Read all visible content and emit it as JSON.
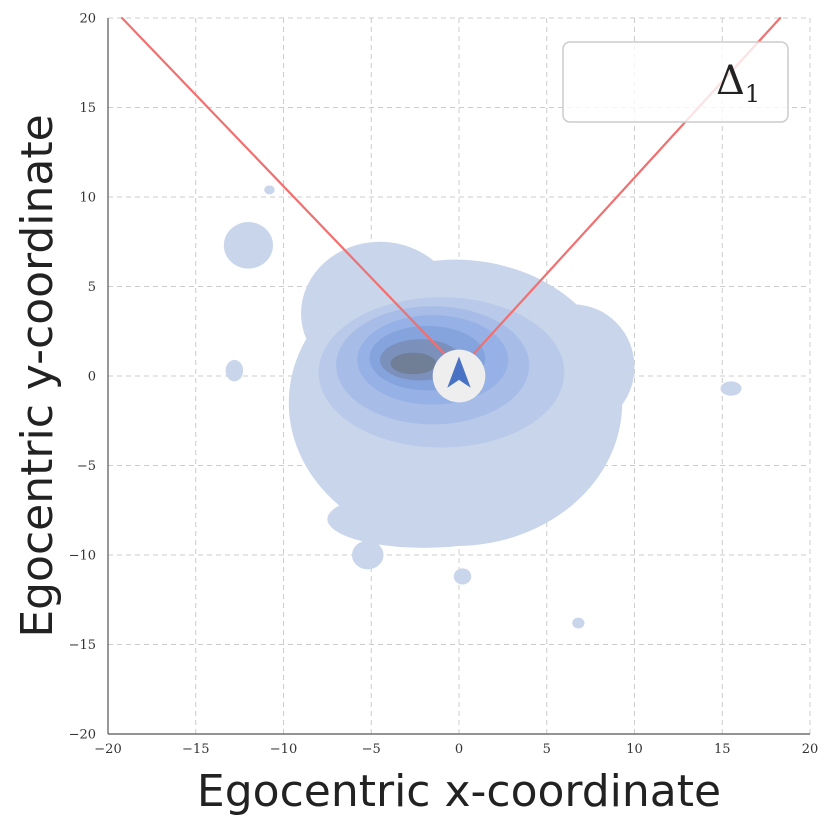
{
  "chart_data": {
    "type": "heatmap",
    "title": "",
    "xlabel": "Egocentric x-coordinate",
    "ylabel": "Egocentric y-coordinate",
    "xlim": [
      -20,
      20
    ],
    "ylim": [
      -20,
      20
    ],
    "xticks": [
      -20,
      -15,
      -10,
      -5,
      0,
      5,
      10,
      15,
      20
    ],
    "yticks": [
      -20,
      -15,
      -10,
      -5,
      0,
      5,
      10,
      15,
      20
    ],
    "xtick_labels": [
      "−20",
      "−15",
      "−10",
      "−5",
      "0",
      "5",
      "10",
      "15",
      "20"
    ],
    "ytick_labels": [
      "−20",
      "−15",
      "−10",
      "−5",
      "0",
      "5",
      "10",
      "15",
      "20"
    ],
    "grid": true,
    "legend": {
      "placement": "top-right",
      "label": "Δ",
      "label_subscript": "1"
    },
    "density_levels": [
      {
        "level": 1,
        "color": "#c9d5ea",
        "blobs": [
          {
            "cx": -0.2,
            "cy": -1.5,
            "rx": 9.5,
            "ry": 8.0
          },
          {
            "cx": -4.5,
            "cy": 3.5,
            "rx": 4.5,
            "ry": 4.0
          },
          {
            "cx": 6.5,
            "cy": 0.5,
            "rx": 3.5,
            "ry": 3.5
          },
          {
            "cx": -2.0,
            "cy": -8.0,
            "rx": 5.5,
            "ry": 1.6
          },
          {
            "cx": -12.0,
            "cy": 7.3,
            "rx": 1.4,
            "ry": 1.3
          },
          {
            "cx": -5.2,
            "cy": -10.0,
            "rx": 0.9,
            "ry": 0.8
          },
          {
            "cx": -12.8,
            "cy": 0.3,
            "rx": 0.5,
            "ry": 0.6
          },
          {
            "cx": 15.5,
            "cy": -0.7,
            "rx": 0.6,
            "ry": 0.4
          },
          {
            "cx": 0.2,
            "cy": -11.2,
            "rx": 0.5,
            "ry": 0.45
          },
          {
            "cx": 6.8,
            "cy": -13.8,
            "rx": 0.35,
            "ry": 0.3
          },
          {
            "cx": -10.8,
            "cy": 10.4,
            "rx": 0.3,
            "ry": 0.25
          }
        ]
      },
      {
        "level": 2,
        "color": "#b8c9e9",
        "blobs": [
          {
            "cx": -1.0,
            "cy": 0.2,
            "rx": 7.0,
            "ry": 4.2
          }
        ]
      },
      {
        "level": 3,
        "color": "#a7bde7",
        "blobs": [
          {
            "cx": -1.5,
            "cy": 0.6,
            "rx": 5.5,
            "ry": 3.3
          }
        ]
      },
      {
        "level": 4,
        "color": "#96b1e5",
        "blobs": [
          {
            "cx": -1.5,
            "cy": 0.9,
            "rx": 4.3,
            "ry": 2.5
          }
        ]
      },
      {
        "level": 5,
        "color": "#85a3dd",
        "blobs": [
          {
            "cx": -1.8,
            "cy": 1.0,
            "rx": 3.3,
            "ry": 1.8
          }
        ]
      },
      {
        "level": 6,
        "color": "#7b90bb",
        "blobs": [
          {
            "cx": -2.2,
            "cy": 0.9,
            "rx": 2.3,
            "ry": 1.15
          }
        ]
      },
      {
        "level": 7,
        "color": "#707e96",
        "blobs": [
          {
            "cx": -2.6,
            "cy": 0.7,
            "rx": 1.3,
            "ry": 0.6
          }
        ]
      }
    ],
    "view_boundary_lines": [
      {
        "x1": -0.8,
        "y1": 1.2,
        "x2": -19.2,
        "y2": 20
      },
      {
        "x1": 0.8,
        "y1": 1.2,
        "x2": 18.3,
        "y2": 20
      }
    ],
    "agent_marker": {
      "x": 0,
      "y": 0,
      "radius": 1.5,
      "icon": "navigation-arrow-icon",
      "circle_color": "#eeeeee",
      "arrow_color": "#4a72c4"
    },
    "line_color": "#f07070"
  }
}
